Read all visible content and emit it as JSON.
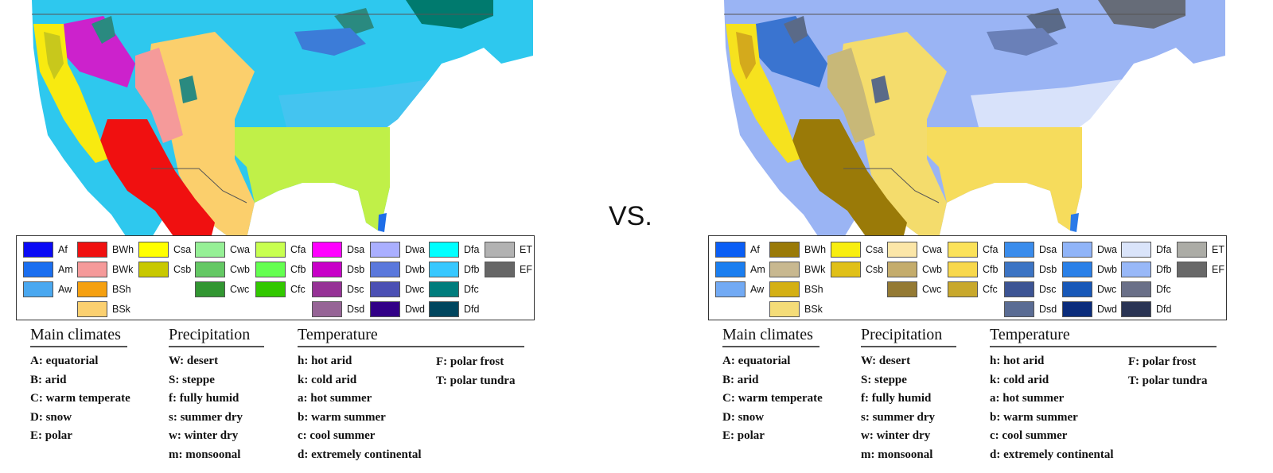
{
  "divider_text": "VS.",
  "panels": [
    {
      "id": "left",
      "map_colors": {
        "ocean": "#ffffff",
        "arctic_green": "#007a6e",
        "boreal_cyan": "#2ec8ee",
        "cool_cyan": "#44c4f0",
        "humid_green": "#c0f048",
        "steppe_orange": "#fbcf6c",
        "desert_red": "#f01010",
        "dry_pink": "#f59a9a",
        "summer_dry_magenta": "#cc22cc",
        "coast_yellow": "#f8ea10",
        "coast_olive": "#c8c81c",
        "mountain_teal": "#2a8a80",
        "lake_blue": "#3c7cd8",
        "tropical_blue": "#1e6ee8"
      },
      "legend": [
        {
          "code": "Af",
          "color": "#0a0af5"
        },
        {
          "code": "Am",
          "color": "#1a6ef0"
        },
        {
          "code": "Aw",
          "color": "#4aa8f0"
        },
        {
          "code": "BWh",
          "color": "#f01010"
        },
        {
          "code": "BWk",
          "color": "#f59a9a"
        },
        {
          "code": "BSh",
          "color": "#f5a010"
        },
        {
          "code": "BSk",
          "color": "#fbd070"
        },
        {
          "code": "Csa",
          "color": "#ffff00"
        },
        {
          "code": "Csb",
          "color": "#c8c800"
        },
        {
          "code": "Cwa",
          "color": "#96f096"
        },
        {
          "code": "Cwb",
          "color": "#64c864"
        },
        {
          "code": "Cwc",
          "color": "#329632"
        },
        {
          "code": "Cfa",
          "color": "#c8ff50"
        },
        {
          "code": "Cfb",
          "color": "#64ff50"
        },
        {
          "code": "Cfc",
          "color": "#32c800"
        },
        {
          "code": "Dsa",
          "color": "#ff00ff"
        },
        {
          "code": "Dsb",
          "color": "#c800c8"
        },
        {
          "code": "Dsc",
          "color": "#963296"
        },
        {
          "code": "Dsd",
          "color": "#966496"
        },
        {
          "code": "Dwa",
          "color": "#aaafff"
        },
        {
          "code": "Dwb",
          "color": "#5a78dc"
        },
        {
          "code": "Dwc",
          "color": "#4b50b4"
        },
        {
          "code": "Dwd",
          "color": "#320087"
        },
        {
          "code": "Dfa",
          "color": "#00ffff"
        },
        {
          "code": "Dfb",
          "color": "#37c8ff"
        },
        {
          "code": "Dfc",
          "color": "#007d7d"
        },
        {
          "code": "Dfd",
          "color": "#00465f"
        },
        {
          "code": "ET",
          "color": "#b2b2b2"
        },
        {
          "code": "EF",
          "color": "#666666"
        }
      ]
    },
    {
      "id": "right",
      "map_colors": {
        "ocean": "#ffffff",
        "arctic_green": "#666c78",
        "boreal_cyan": "#9ab4f4",
        "cool_cyan": "#d8e2fa",
        "humid_green": "#f6dc5c",
        "steppe_orange": "#f4dc6c",
        "desert_red": "#9a7a08",
        "dry_pink": "#c8b878",
        "summer_dry_magenta": "#3a74d0",
        "coast_yellow": "#f6e21e",
        "coast_olive": "#d4aa1c",
        "mountain_teal": "#5a6a88",
        "lake_blue": "#6a80b8",
        "tropical_blue": "#2a7ae8"
      },
      "legend": [
        {
          "code": "Af",
          "color": "#0a5ef5"
        },
        {
          "code": "Am",
          "color": "#1a7ef0"
        },
        {
          "code": "Aw",
          "color": "#72aaf4"
        },
        {
          "code": "BWh",
          "color": "#9a7a08"
        },
        {
          "code": "BWk",
          "color": "#c8b890"
        },
        {
          "code": "BSh",
          "color": "#d4b014"
        },
        {
          "code": "BSk",
          "color": "#f4dc78"
        },
        {
          "code": "Csa",
          "color": "#f8ee10"
        },
        {
          "code": "Csb",
          "color": "#e0c018"
        },
        {
          "code": "Cwa",
          "color": "#fbe6a8"
        },
        {
          "code": "Cwb",
          "color": "#c4ac6c"
        },
        {
          "code": "Cwc",
          "color": "#947a34"
        },
        {
          "code": "Cfa",
          "color": "#fbe25a"
        },
        {
          "code": "Cfb",
          "color": "#f8d84c"
        },
        {
          "code": "Cfc",
          "color": "#c8a82c"
        },
        {
          "code": "Dsa",
          "color": "#3a8cec"
        },
        {
          "code": "Dsb",
          "color": "#3c74c4"
        },
        {
          "code": "Dsc",
          "color": "#3c5494"
        },
        {
          "code": "Dsd",
          "color": "#5a6c94"
        },
        {
          "code": "Dwa",
          "color": "#90b4f8"
        },
        {
          "code": "Dwb",
          "color": "#2a80e8"
        },
        {
          "code": "Dwc",
          "color": "#1858b8"
        },
        {
          "code": "Dwd",
          "color": "#0a2c7c"
        },
        {
          "code": "Dfa",
          "color": "#dae4fa"
        },
        {
          "code": "Dfb",
          "color": "#98b8f8"
        },
        {
          "code": "Dfc",
          "color": "#6a7088"
        },
        {
          "code": "Dfd",
          "color": "#2a3454"
        },
        {
          "code": "ET",
          "color": "#acaca6"
        },
        {
          "code": "EF",
          "color": "#686868"
        }
      ]
    }
  ],
  "key": {
    "main": {
      "title": "Main climates",
      "items": [
        "A: equatorial",
        "B: arid",
        "C: warm temperate",
        "D: snow",
        "E: polar"
      ]
    },
    "precip": {
      "title": "Precipitation",
      "items": [
        "W: desert",
        "S: steppe",
        "f: fully humid",
        "s: summer dry",
        "w: winter dry",
        "m: monsoonal"
      ]
    },
    "temp": {
      "title": "Temperature",
      "items_a": [
        "h: hot arid",
        "k: cold arid",
        "a: hot summer",
        "b: warm summer",
        "c: cool summer",
        "d: extremely continental"
      ],
      "items_b": [
        "F: polar frost",
        "T: polar tundra"
      ]
    }
  }
}
